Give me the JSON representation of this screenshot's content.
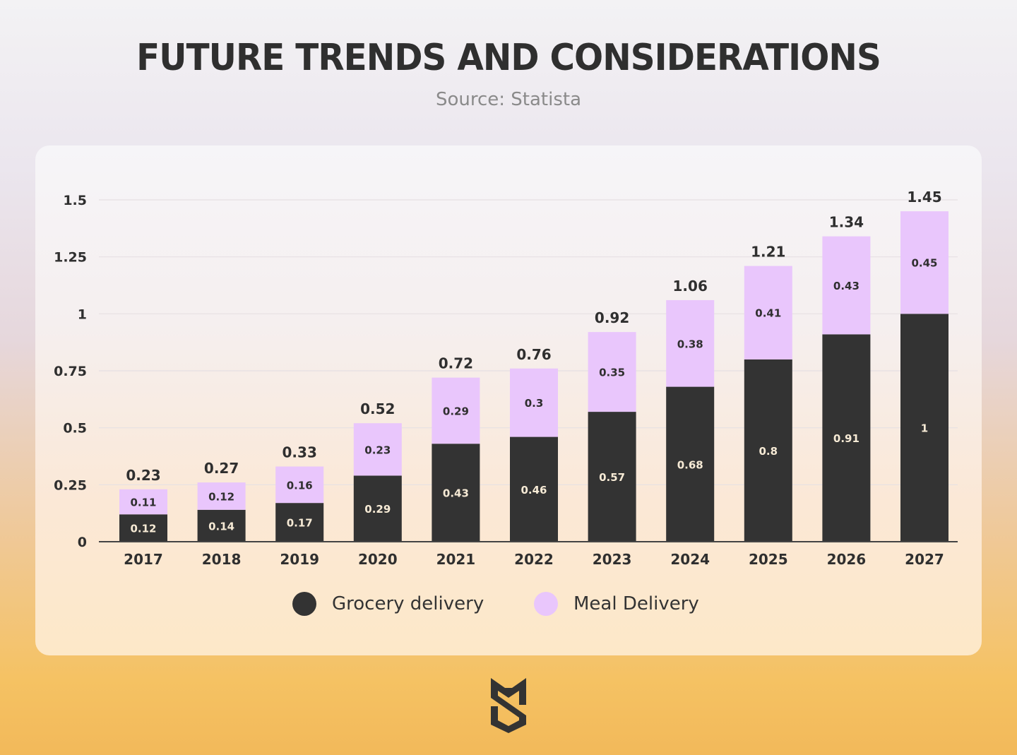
{
  "header": {
    "title": "FUTURE TRENDS AND CONSIDERATIONS",
    "source": "Source: Statista"
  },
  "colors": {
    "grocery": "#333333",
    "meal": "#e9c6fc",
    "text": "#2f2f2f",
    "inner_label_light": "#f6ead5",
    "inner_label_dark": "#2f2f2f",
    "grid": "#e6e0e3",
    "axis": "#444444"
  },
  "chart_data": {
    "type": "bar",
    "stacked": true,
    "title": "FUTURE TRENDS AND CONSIDERATIONS",
    "subtitle": "Source: Statista",
    "xlabel": "",
    "ylabel": "",
    "ylim": [
      0,
      1.5
    ],
    "yticks": [
      0,
      0.25,
      0.5,
      0.75,
      1,
      1.25,
      1.5
    ],
    "ytick_labels": [
      "0",
      "0.25",
      "0.5",
      "0.75",
      "1",
      "1.25",
      "1.5"
    ],
    "grid": true,
    "legend_position": "bottom-center",
    "categories": [
      "2017",
      "2018",
      "2019",
      "2020",
      "2021",
      "2022",
      "2023",
      "2024",
      "2025",
      "2026",
      "2027"
    ],
    "series": [
      {
        "name": "Grocery delivery",
        "color": "#333333",
        "values": [
          0.12,
          0.14,
          0.17,
          0.29,
          0.43,
          0.46,
          0.57,
          0.68,
          0.8,
          0.91,
          1
        ],
        "labels": [
          "0.12",
          "0.14",
          "0.17",
          "0.29",
          "0.43",
          "0.46",
          "0.57",
          "0.68",
          "0.8",
          "0.91",
          "1"
        ]
      },
      {
        "name": "Meal Delivery",
        "color": "#e9c6fc",
        "values": [
          0.11,
          0.12,
          0.16,
          0.23,
          0.29,
          0.3,
          0.35,
          0.38,
          0.41,
          0.43,
          0.45
        ],
        "labels": [
          "0.11",
          "0.12",
          "0.16",
          "0.23",
          "0.29",
          "0.3",
          "0.35",
          "0.38",
          "0.41",
          "0.43",
          "0.45"
        ]
      }
    ],
    "totals": [
      0.23,
      0.27,
      0.33,
      0.52,
      0.72,
      0.76,
      0.92,
      1.06,
      1.21,
      1.34,
      1.45
    ],
    "total_labels": [
      "0.23",
      "0.27",
      "0.33",
      "0.52",
      "0.72",
      "0.76",
      "0.92",
      "1.06",
      "1.21",
      "1.34",
      "1.45"
    ]
  },
  "legend": {
    "items": [
      {
        "label": "Grocery delivery",
        "color": "#333333"
      },
      {
        "label": "Meal Delivery",
        "color": "#e9c6fc"
      }
    ]
  },
  "logo": {
    "name": "brand-logo-s-monogram"
  }
}
